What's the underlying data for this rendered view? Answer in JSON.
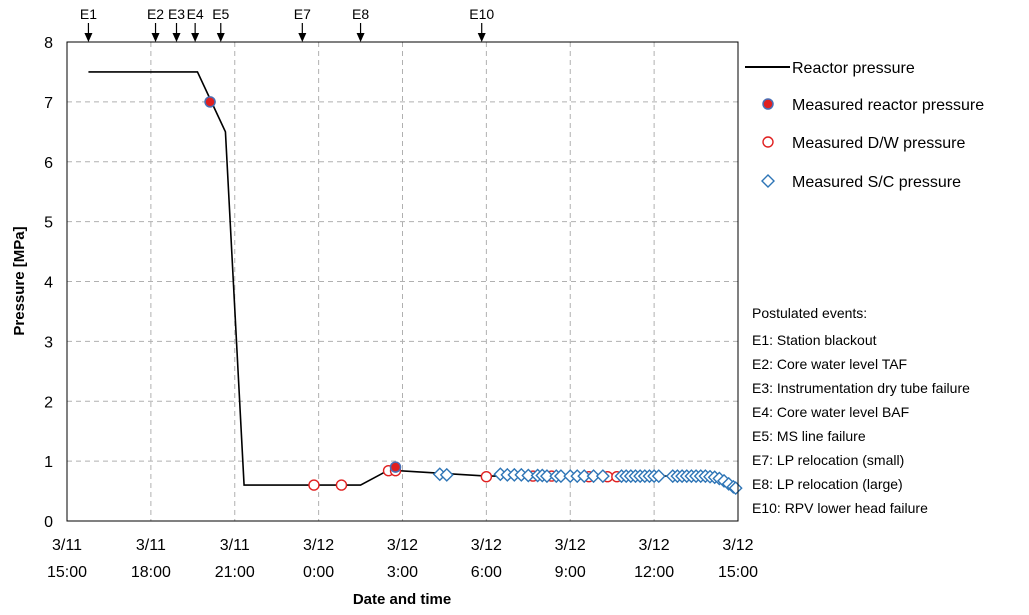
{
  "chart_data": {
    "type": "line",
    "title": "",
    "xlabel": "Date and time",
    "ylabel": "Pressure [MPa]",
    "xlim": [
      "3/11 15:00",
      "3/12 15:00"
    ],
    "ylim": [
      0,
      8
    ],
    "y_ticks": [
      0,
      1,
      2,
      3,
      4,
      5,
      6,
      7,
      8
    ],
    "x_ticks": [
      {
        "t": "3/11 15:00",
        "line1": "3/11",
        "line2": "15:00"
      },
      {
        "t": "3/11 18:00",
        "line1": "3/11",
        "line2": "18:00"
      },
      {
        "t": "3/11 21:00",
        "line1": "3/11",
        "line2": "21:00"
      },
      {
        "t": "3/12 0:00",
        "line1": "3/12",
        "line2": "0:00"
      },
      {
        "t": "3/12 3:00",
        "line1": "3/12",
        "line2": "3:00"
      },
      {
        "t": "3/12 6:00",
        "line1": "3/12",
        "line2": "6:00"
      },
      {
        "t": "3/12 9:00",
        "line1": "3/12",
        "line2": "9:00"
      },
      {
        "t": "3/12 12:00",
        "line1": "3/12",
        "line2": "12:00"
      },
      {
        "t": "3/12 15:00",
        "line1": "3/12",
        "line2": "15:00"
      }
    ],
    "grid": true,
    "legend_position": "right",
    "events": [
      {
        "label": "E1",
        "t": "3/11 15:46"
      },
      {
        "label": "E2",
        "t": "3/11 18:10"
      },
      {
        "label": "E3",
        "t": "3/11 18:55"
      },
      {
        "label": "E4",
        "t": "3/11 19:35"
      },
      {
        "label": "E5",
        "t": "3/11 20:30"
      },
      {
        "label": "E7",
        "t": "3/11 23:25"
      },
      {
        "label": "E8",
        "t": "3/12 1:30"
      },
      {
        "label": "E10",
        "t": "3/12 5:50"
      }
    ],
    "series": [
      {
        "name": "Reactor pressure",
        "kind": "line",
        "color": "#000000",
        "points": [
          {
            "t": "3/11 15:46",
            "y": 7.5
          },
          {
            "t": "3/11 19:40",
            "y": 7.5
          },
          {
            "t": "3/11 20:10",
            "y": 7.0
          },
          {
            "t": "3/11 20:40",
            "y": 6.5
          },
          {
            "t": "3/11 21:20",
            "y": 0.6
          },
          {
            "t": "3/12 1:30",
            "y": 0.6
          },
          {
            "t": "3/12 2:30",
            "y": 0.85
          },
          {
            "t": "3/12 6:00",
            "y": 0.75
          },
          {
            "t": "3/12 14:00",
            "y": 0.75
          },
          {
            "t": "3/12 15:00",
            "y": 0.55
          }
        ]
      },
      {
        "name": "Measured reactor pressure",
        "kind": "marker",
        "marker": "filled-circle",
        "color": "#e02020",
        "edge": "#4a6fb5",
        "points": [
          {
            "t": "3/11 20:07",
            "y": 7.0
          },
          {
            "t": "3/12 2:45",
            "y": 0.9
          }
        ]
      },
      {
        "name": "Measured D/W pressure",
        "kind": "marker",
        "marker": "open-circle",
        "color": "#e02020",
        "points": [
          {
            "t": "3/11 23:50",
            "y": 0.6
          },
          {
            "t": "3/12 0:49",
            "y": 0.6
          },
          {
            "t": "3/12 2:30",
            "y": 0.84
          },
          {
            "t": "3/12 2:45",
            "y": 0.84
          },
          {
            "t": "3/12 6:00",
            "y": 0.74
          },
          {
            "t": "3/12 7:40",
            "y": 0.75
          },
          {
            "t": "3/12 8:20",
            "y": 0.75
          },
          {
            "t": "3/12 9:40",
            "y": 0.74
          },
          {
            "t": "3/12 10:20",
            "y": 0.74
          },
          {
            "t": "3/12 10:40",
            "y": 0.74
          }
        ]
      },
      {
        "name": "Measured S/C pressure",
        "kind": "marker",
        "marker": "open-diamond",
        "color": "#2e75b6",
        "points": [
          {
            "t": "3/12 4:20",
            "y": 0.78
          },
          {
            "t": "3/12 4:35",
            "y": 0.77
          },
          {
            "t": "3/12 6:30",
            "y": 0.78
          },
          {
            "t": "3/12 6:45",
            "y": 0.77
          },
          {
            "t": "3/12 7:00",
            "y": 0.77
          },
          {
            "t": "3/12 7:15",
            "y": 0.77
          },
          {
            "t": "3/12 7:30",
            "y": 0.76
          },
          {
            "t": "3/12 7:50",
            "y": 0.76
          },
          {
            "t": "3/12 8:00",
            "y": 0.76
          },
          {
            "t": "3/12 8:10",
            "y": 0.75
          },
          {
            "t": "3/12 8:30",
            "y": 0.75
          },
          {
            "t": "3/12 8:40",
            "y": 0.75
          },
          {
            "t": "3/12 9:00",
            "y": 0.75
          },
          {
            "t": "3/12 9:15",
            "y": 0.75
          },
          {
            "t": "3/12 9:30",
            "y": 0.75
          },
          {
            "t": "3/12 9:50",
            "y": 0.75
          },
          {
            "t": "3/12 10:10",
            "y": 0.75
          },
          {
            "t": "3/12 10:50",
            "y": 0.75
          },
          {
            "t": "3/12 11:00",
            "y": 0.75
          },
          {
            "t": "3/12 11:10",
            "y": 0.75
          },
          {
            "t": "3/12 11:20",
            "y": 0.75
          },
          {
            "t": "3/12 11:30",
            "y": 0.75
          },
          {
            "t": "3/12 11:40",
            "y": 0.75
          },
          {
            "t": "3/12 11:50",
            "y": 0.75
          },
          {
            "t": "3/12 12:00",
            "y": 0.75
          },
          {
            "t": "3/12 12:10",
            "y": 0.75
          },
          {
            "t": "3/12 12:40",
            "y": 0.75
          },
          {
            "t": "3/12 12:50",
            "y": 0.75
          },
          {
            "t": "3/12 13:00",
            "y": 0.75
          },
          {
            "t": "3/12 13:10",
            "y": 0.75
          },
          {
            "t": "3/12 13:20",
            "y": 0.75
          },
          {
            "t": "3/12 13:30",
            "y": 0.75
          },
          {
            "t": "3/12 13:40",
            "y": 0.75
          },
          {
            "t": "3/12 13:50",
            "y": 0.75
          },
          {
            "t": "3/12 14:00",
            "y": 0.74
          },
          {
            "t": "3/12 14:10",
            "y": 0.73
          },
          {
            "t": "3/12 14:20",
            "y": 0.71
          },
          {
            "t": "3/12 14:30",
            "y": 0.67
          },
          {
            "t": "3/12 14:40",
            "y": 0.62
          },
          {
            "t": "3/12 14:50",
            "y": 0.57
          },
          {
            "t": "3/12 14:55",
            "y": 0.55
          }
        ]
      }
    ],
    "notes": {
      "heading": "Postulated events:",
      "lines": [
        "E1: Station blackout",
        "E2: Core water level TAF",
        "E3: Instrumentation dry tube failure",
        "E4: Core water level BAF",
        "E5: MS line failure",
        "E7: LP relocation (small)",
        "E8: LP relocation (large)",
        "E10: RPV lower head failure"
      ]
    }
  }
}
